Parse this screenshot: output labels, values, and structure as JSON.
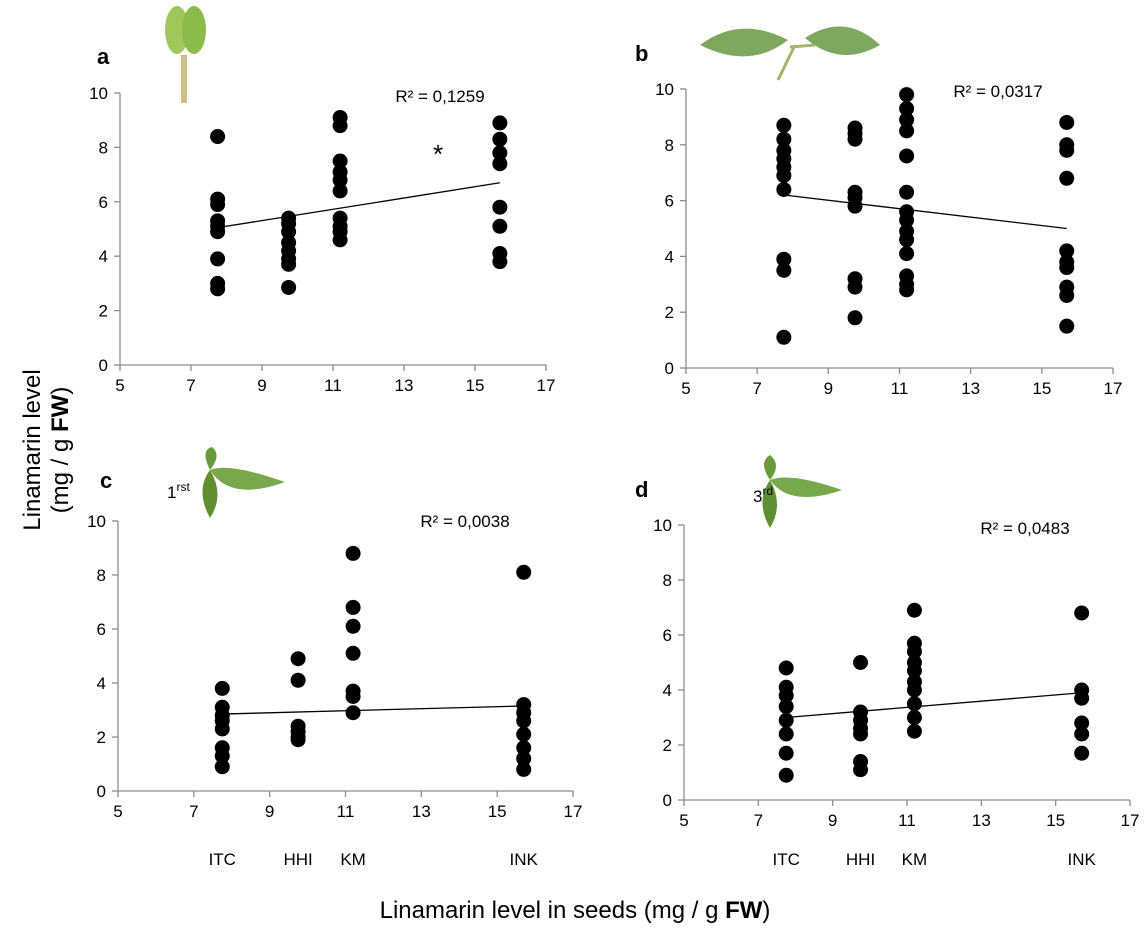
{
  "figure": {
    "ylabel_line1": "Linamarin level",
    "ylabel_line2": [
      "(mg / g ",
      "FW",
      ")"
    ],
    "xlabel": [
      "Linamarin level in seeds (mg / g ",
      "FW",
      ")"
    ]
  },
  "chart_data": [
    {
      "type": "scatter",
      "panel_label": "a",
      "annotation": "R² = 0,1259",
      "marker": "*",
      "color": "#000000",
      "x": [
        7.75,
        7.75,
        7.75,
        7.75,
        7.75,
        7.75,
        7.75,
        7.75,
        7.75,
        9.75,
        9.75,
        9.75,
        9.75,
        9.75,
        9.75,
        9.75,
        9.75,
        11.2,
        11.2,
        11.2,
        11.2,
        11.2,
        11.2,
        11.2,
        11.2,
        11.2,
        11.2,
        15.7,
        15.7,
        15.7,
        15.7,
        15.7,
        15.7,
        15.7,
        15.7
      ],
      "values": [
        8.4,
        6.1,
        5.9,
        5.3,
        5.1,
        4.9,
        3.9,
        3.0,
        2.8,
        5.4,
        5.2,
        4.9,
        4.5,
        4.2,
        3.9,
        3.7,
        2.85,
        9.1,
        8.8,
        7.5,
        7.1,
        6.8,
        6.4,
        5.4,
        5.1,
        4.9,
        4.6,
        8.9,
        8.3,
        7.8,
        7.4,
        5.8,
        5.1,
        4.1,
        3.8
      ],
      "trend": {
        "x": [
          7.75,
          15.7
        ],
        "values": [
          5.05,
          6.7
        ]
      },
      "xlim": [
        5,
        17
      ],
      "xticks": [
        5,
        7,
        9,
        11,
        13,
        15,
        17
      ],
      "ylim": [
        0,
        10
      ],
      "yticks": [
        0,
        2,
        4,
        6,
        8,
        10
      ]
    },
    {
      "type": "scatter",
      "panel_label": "b",
      "annotation": "R² = 0,0317",
      "color": "#000000",
      "x": [
        7.75,
        7.75,
        7.75,
        7.75,
        7.75,
        7.75,
        7.75,
        7.75,
        7.75,
        7.75,
        9.75,
        9.75,
        9.75,
        9.75,
        9.75,
        9.75,
        9.75,
        9.75,
        9.75,
        11.2,
        11.2,
        11.2,
        11.2,
        11.2,
        11.2,
        11.2,
        11.2,
        11.2,
        11.2,
        11.2,
        11.2,
        11.2,
        11.2,
        15.7,
        15.7,
        15.7,
        15.7,
        15.7,
        15.7,
        15.7,
        15.7,
        15.7,
        15.7
      ],
      "values": [
        8.7,
        8.2,
        7.8,
        7.5,
        7.2,
        6.9,
        6.4,
        3.9,
        3.5,
        1.1,
        8.6,
        8.4,
        8.2,
        6.3,
        6.1,
        5.8,
        3.2,
        2.9,
        1.8,
        9.8,
        9.3,
        8.9,
        8.5,
        7.6,
        6.3,
        5.6,
        5.3,
        4.9,
        4.6,
        4.1,
        3.3,
        3.0,
        2.8,
        8.8,
        8.0,
        7.8,
        6.8,
        4.2,
        3.8,
        3.6,
        2.9,
        2.6,
        1.5
      ],
      "trend": {
        "x": [
          7.75,
          15.7
        ],
        "values": [
          6.2,
          5.0
        ]
      },
      "xlim": [
        5,
        17
      ],
      "xticks": [
        5,
        7,
        9,
        11,
        13,
        15,
        17
      ],
      "ylim": [
        0,
        10
      ],
      "yticks": [
        0,
        2,
        4,
        6,
        8,
        10
      ]
    },
    {
      "type": "scatter",
      "panel_label": "c",
      "annotation": "R² = 0,0038",
      "leaf_label": {
        "number": "1",
        "suffix": "rst"
      },
      "color": "#000000",
      "x": [
        7.75,
        7.75,
        7.75,
        7.75,
        7.75,
        7.75,
        7.75,
        7.75,
        9.75,
        9.75,
        9.75,
        9.75,
        9.75,
        9.75,
        11.2,
        11.2,
        11.2,
        11.2,
        11.2,
        11.2,
        11.2,
        15.7,
        15.7,
        15.7,
        15.7,
        15.7,
        15.7,
        15.7,
        15.7
      ],
      "values": [
        3.8,
        3.1,
        2.8,
        2.6,
        2.3,
        1.6,
        1.3,
        0.9,
        4.9,
        4.1,
        2.4,
        2.2,
        2.0,
        1.9,
        8.8,
        6.8,
        6.1,
        5.1,
        3.7,
        3.5,
        2.9,
        8.1,
        3.2,
        2.9,
        2.6,
        2.1,
        1.6,
        1.2,
        0.8
      ],
      "trend": {
        "x": [
          7.75,
          15.7
        ],
        "values": [
          2.85,
          3.15
        ]
      },
      "categories": [
        "ITC",
        "HHI",
        "KM",
        "INK"
      ],
      "category_x": [
        7.75,
        9.75,
        11.2,
        15.7
      ],
      "xlim": [
        5,
        17
      ],
      "xticks": [
        5,
        7,
        9,
        11,
        13,
        15,
        17
      ],
      "ylim": [
        0,
        10
      ],
      "yticks": [
        0,
        2,
        4,
        6,
        8,
        10
      ]
    },
    {
      "type": "scatter",
      "panel_label": "d",
      "annotation": "R² = 0,0483",
      "leaf_label": {
        "number": "3",
        "suffix": "rd"
      },
      "color": "#000000",
      "x": [
        7.75,
        7.75,
        7.75,
        7.75,
        7.75,
        7.75,
        7.75,
        7.75,
        9.75,
        9.75,
        9.75,
        9.75,
        9.75,
        9.75,
        9.75,
        11.2,
        11.2,
        11.2,
        11.2,
        11.2,
        11.2,
        11.2,
        11.2,
        11.2,
        11.2,
        15.7,
        15.7,
        15.7,
        15.7,
        15.7,
        15.7
      ],
      "values": [
        4.8,
        4.1,
        3.8,
        3.4,
        2.9,
        2.4,
        1.7,
        0.9,
        5.0,
        3.2,
        2.9,
        2.6,
        2.4,
        1.4,
        1.1,
        6.9,
        5.7,
        5.4,
        5.0,
        4.7,
        4.3,
        4.0,
        3.5,
        3.0,
        2.5,
        6.8,
        4.0,
        3.7,
        2.8,
        2.4,
        1.7
      ],
      "trend": {
        "x": [
          7.75,
          15.7
        ],
        "values": [
          3.0,
          3.9
        ]
      },
      "categories": [
        "ITC",
        "HHI",
        "KM",
        "INK"
      ],
      "category_x": [
        7.75,
        9.75,
        11.2,
        15.7
      ],
      "xlim": [
        5,
        17
      ],
      "xticks": [
        5,
        7,
        9,
        11,
        13,
        15,
        17
      ],
      "ylim": [
        0,
        10
      ],
      "yticks": [
        0,
        2,
        4,
        6,
        8,
        10
      ]
    }
  ]
}
